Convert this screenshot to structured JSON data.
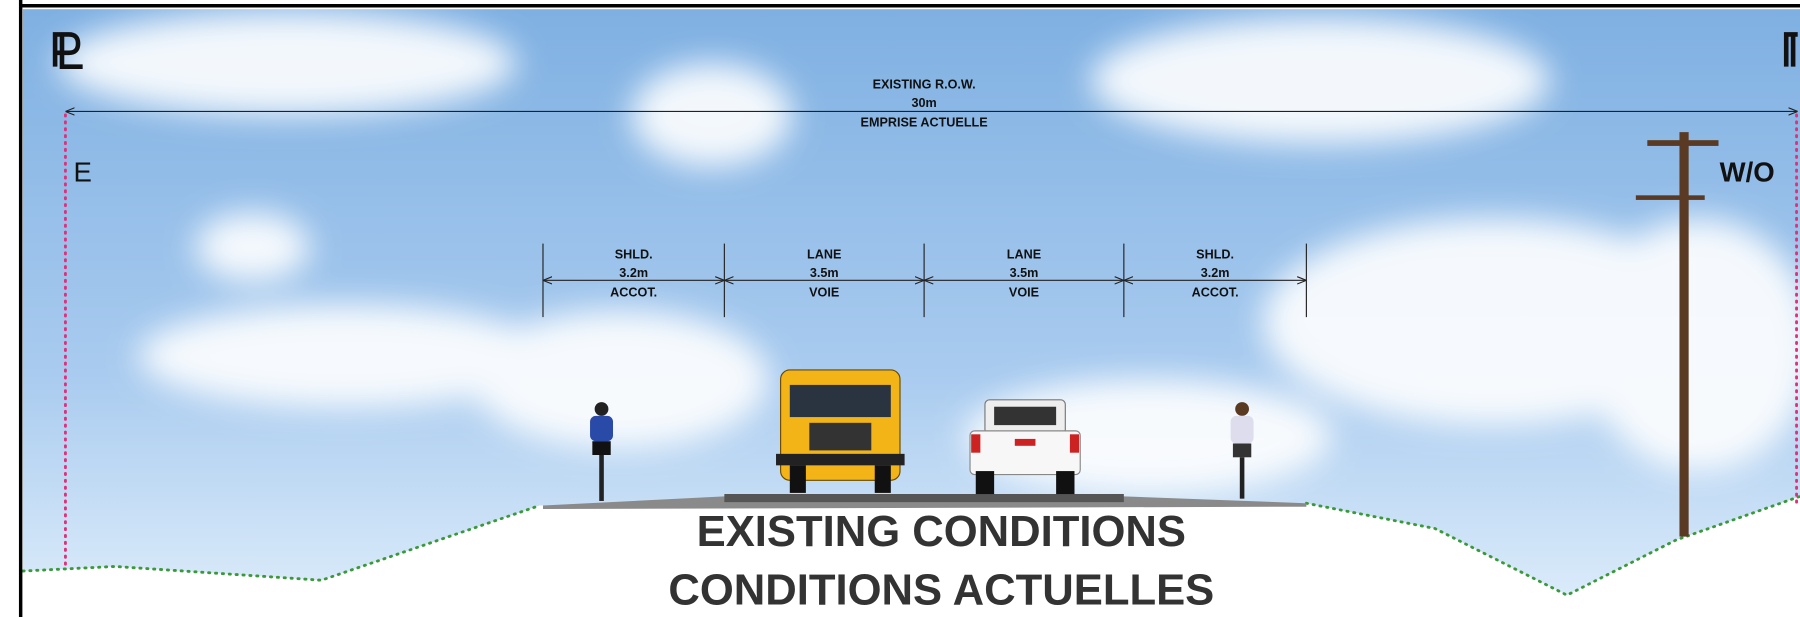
{
  "right_of_way": {
    "label": "EXISTING R.O.W.",
    "width": "30m",
    "label_fr": "EMPRISE ACTUELLE"
  },
  "sides": {
    "left": "E",
    "right": "W/O"
  },
  "segments": [
    {
      "name": "SHLD.",
      "width": "3.2m",
      "name_fr": "ACCOT."
    },
    {
      "name": "LANE",
      "width": "3.5m",
      "name_fr": "VOIE"
    },
    {
      "name": "LANE",
      "width": "3.5m",
      "name_fr": "VOIE"
    },
    {
      "name": "SHLD.",
      "width": "3.2m",
      "name_fr": "ACCOT."
    }
  ],
  "title": {
    "en": "EXISTING CONDITIONS",
    "fr": "CONDITIONS ACTUELLES"
  }
}
